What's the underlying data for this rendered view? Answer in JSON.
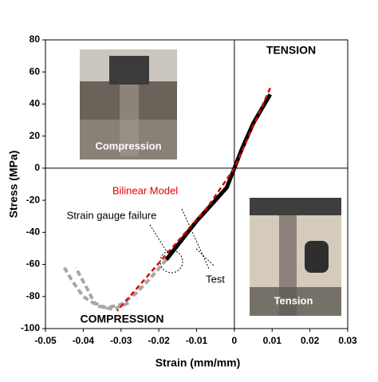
{
  "chart_data": {
    "type": "line",
    "xlabel": "Strain (mm/mm)",
    "ylabel": "Stress (MPa)",
    "xlim": [
      -0.05,
      0.03
    ],
    "xticks": [
      -0.05,
      -0.04,
      -0.03,
      -0.02,
      -0.01,
      0,
      0.01,
      0.02,
      0.03
    ],
    "ylim": [
      -100,
      80
    ],
    "yticks": [
      -100,
      -80,
      -60,
      -40,
      -20,
      0,
      20,
      40,
      60,
      80
    ],
    "series": [
      {
        "color": "#000000",
        "style": "solid",
        "x": [
          0.0095,
          0.008,
          0.005,
          0.002,
          0,
          -0.002,
          -0.005,
          -0.01,
          -0.015,
          -0.018
        ],
        "values": [
          46,
          40,
          28,
          12,
          0,
          -12,
          -20,
          -33,
          -48,
          -57
        ]
      },
      {
        "color": "#a6a6a6",
        "style": "dashed",
        "x": [
          -0.018,
          -0.022,
          -0.026,
          -0.03,
          -0.034,
          -0.037,
          -0.039,
          -0.042
        ],
        "values": [
          -57,
          -68,
          -78,
          -85,
          -87,
          -84,
          -75,
          -62
        ]
      },
      {
        "color": "#a6a6a6",
        "style": "dashed",
        "x": [
          -0.028,
          -0.032,
          -0.036,
          -0.04,
          -0.043,
          -0.045
        ],
        "values": [
          -84,
          -88,
          -86,
          -80,
          -70,
          -62
        ]
      },
      {
        "color": "#e00000",
        "style": "dashed",
        "x": [
          0.0095,
          0,
          -0.007,
          -0.031
        ],
        "values": [
          50,
          0,
          -24,
          -89
        ]
      }
    ],
    "annotations": [
      "TENSION",
      "COMPRESSION",
      "Bilinear Model",
      "Strain gauge failure",
      "Test"
    ],
    "photo_labels": [
      "Compression",
      "Tension"
    ]
  }
}
